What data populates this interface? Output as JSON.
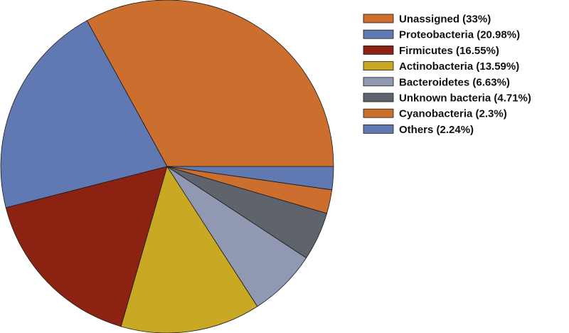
{
  "chart_data": {
    "type": "pie",
    "title": "",
    "legend_position": "right",
    "start_angle_deg": 0,
    "direction": "counterclockwise",
    "slices": [
      {
        "label": "Unassigned (33%)",
        "value": 33.0,
        "color": "#CC6E2E"
      },
      {
        "label": "Proteobacteria (20.98%)",
        "value": 20.98,
        "color": "#6079B2"
      },
      {
        "label": "Firmicutes (16.55%)",
        "value": 16.55,
        "color": "#8B2212"
      },
      {
        "label": "Actinobacteria (13.59%)",
        "value": 13.59,
        "color": "#C9A824"
      },
      {
        "label": "Bacteroidetes (6.63%)",
        "value": 6.63,
        "color": "#9199B2"
      },
      {
        "label": "Unknown bacteria  (4.71%)",
        "value": 4.71,
        "color": "#5F636B"
      },
      {
        "label": "Cyanobacteria (2.3%)",
        "value": 2.3,
        "color": "#CC6E2E"
      },
      {
        "label": "Others (2.24%)",
        "value": 2.24,
        "color": "#6079B2"
      }
    ]
  }
}
